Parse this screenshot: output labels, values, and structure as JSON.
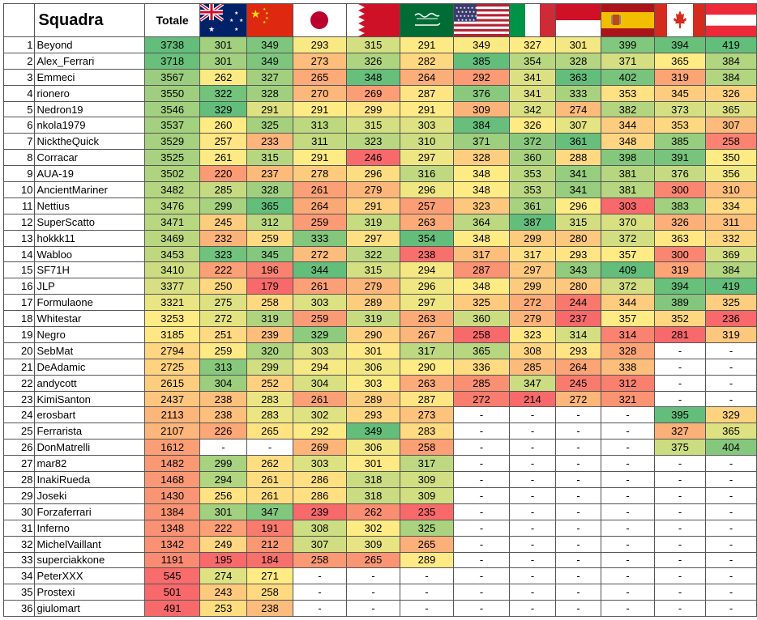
{
  "header": {
    "title": "Squadra",
    "total_label": "Totale"
  },
  "flags": [
    "australia-flag",
    "china-flag",
    "japan-flag",
    "bahrain-flag",
    "saudi-arabia-flag",
    "usa-flag",
    "italy-flag",
    "monaco-flag",
    "spain-flag",
    "canada-flag",
    "austria-flag"
  ],
  "rows": [
    {
      "rank": "1",
      "name": "Beyond",
      "total": "3738",
      "scores": [
        "301",
        "349",
        "293",
        "315",
        "291",
        "349",
        "327",
        "301",
        "399",
        "394",
        "419"
      ]
    },
    {
      "rank": "2",
      "name": "Alex_Ferrari",
      "total": "3718",
      "scores": [
        "301",
        "349",
        "273",
        "326",
        "282",
        "385",
        "354",
        "328",
        "371",
        "365",
        "384"
      ]
    },
    {
      "rank": "3",
      "name": "Emmeci",
      "total": "3567",
      "scores": [
        "262",
        "327",
        "265",
        "348",
        "264",
        "292",
        "341",
        "363",
        "402",
        "319",
        "384"
      ]
    },
    {
      "rank": "4",
      "name": "rionero",
      "total": "3550",
      "scores": [
        "322",
        "328",
        "270",
        "269",
        "287",
        "376",
        "341",
        "333",
        "353",
        "345",
        "326"
      ]
    },
    {
      "rank": "5",
      "name": "Nedron19",
      "total": "3546",
      "scores": [
        "329",
        "291",
        "291",
        "299",
        "291",
        "309",
        "342",
        "274",
        "382",
        "373",
        "365"
      ]
    },
    {
      "rank": "6",
      "name": "nkola1979",
      "total": "3537",
      "scores": [
        "260",
        "325",
        "313",
        "315",
        "303",
        "384",
        "326",
        "307",
        "344",
        "353",
        "307"
      ]
    },
    {
      "rank": "7",
      "name": "NicktheQuick",
      "total": "3529",
      "scores": [
        "257",
        "233",
        "311",
        "323",
        "310",
        "371",
        "372",
        "361",
        "348",
        "385",
        "258"
      ]
    },
    {
      "rank": "8",
      "name": "Corracar",
      "total": "3525",
      "scores": [
        "261",
        "315",
        "291",
        "246",
        "297",
        "328",
        "360",
        "288",
        "398",
        "391",
        "350"
      ]
    },
    {
      "rank": "9",
      "name": "AUA-19",
      "total": "3502",
      "scores": [
        "220",
        "237",
        "278",
        "296",
        "316",
        "348",
        "353",
        "341",
        "381",
        "376",
        "356"
      ]
    },
    {
      "rank": "10",
      "name": "AncientMariner",
      "total": "3482",
      "scores": [
        "285",
        "328",
        "261",
        "279",
        "296",
        "348",
        "353",
        "341",
        "381",
        "300",
        "310"
      ]
    },
    {
      "rank": "11",
      "name": "Nettius",
      "total": "3476",
      "scores": [
        "299",
        "365",
        "264",
        "291",
        "257",
        "323",
        "361",
        "296",
        "303",
        "383",
        "334"
      ]
    },
    {
      "rank": "12",
      "name": "SuperScatto",
      "total": "3471",
      "scores": [
        "245",
        "312",
        "259",
        "319",
        "263",
        "364",
        "387",
        "315",
        "370",
        "326",
        "311"
      ]
    },
    {
      "rank": "13",
      "name": "hokkk11",
      "total": "3469",
      "scores": [
        "232",
        "259",
        "333",
        "297",
        "354",
        "348",
        "299",
        "280",
        "372",
        "363",
        "332"
      ]
    },
    {
      "rank": "14",
      "name": "Wabloo",
      "total": "3453",
      "scores": [
        "323",
        "345",
        "272",
        "322",
        "238",
        "317",
        "317",
        "293",
        "357",
        "300",
        "369"
      ]
    },
    {
      "rank": "15",
      "name": "SF71H",
      "total": "3410",
      "scores": [
        "222",
        "196",
        "344",
        "315",
        "294",
        "287",
        "297",
        "343",
        "409",
        "319",
        "384"
      ]
    },
    {
      "rank": "16",
      "name": "JLP",
      "total": "3377",
      "scores": [
        "250",
        "179",
        "261",
        "279",
        "296",
        "348",
        "299",
        "280",
        "372",
        "394",
        "419"
      ]
    },
    {
      "rank": "17",
      "name": "Formulaone",
      "total": "3321",
      "scores": [
        "275",
        "258",
        "303",
        "289",
        "297",
        "325",
        "272",
        "244",
        "344",
        "389",
        "325"
      ]
    },
    {
      "rank": "18",
      "name": "Whitestar",
      "total": "3253",
      "scores": [
        "272",
        "319",
        "259",
        "319",
        "263",
        "360",
        "279",
        "237",
        "357",
        "352",
        "236"
      ]
    },
    {
      "rank": "19",
      "name": "Negro",
      "total": "3185",
      "scores": [
        "251",
        "239",
        "329",
        "290",
        "267",
        "258",
        "323",
        "314",
        "314",
        "281",
        "319"
      ]
    },
    {
      "rank": "20",
      "name": "SebMat",
      "total": "2794",
      "scores": [
        "259",
        "320",
        "303",
        "301",
        "317",
        "365",
        "308",
        "293",
        "328",
        "-",
        "-"
      ]
    },
    {
      "rank": "21",
      "name": "DeAdamic",
      "total": "2725",
      "scores": [
        "313",
        "299",
        "294",
        "306",
        "290",
        "336",
        "285",
        "264",
        "338",
        "-",
        "-"
      ]
    },
    {
      "rank": "22",
      "name": "andycott",
      "total": "2615",
      "scores": [
        "304",
        "252",
        "304",
        "303",
        "263",
        "285",
        "347",
        "245",
        "312",
        "-",
        "-"
      ]
    },
    {
      "rank": "23",
      "name": "KimiSanton",
      "total": "2437",
      "scores": [
        "238",
        "283",
        "261",
        "289",
        "287",
        "272",
        "214",
        "272",
        "321",
        "-",
        "-"
      ]
    },
    {
      "rank": "24",
      "name": "erosbart",
      "total": "2113",
      "scores": [
        "238",
        "283",
        "302",
        "293",
        "273",
        "-",
        "-",
        "-",
        "-",
        "395",
        "329"
      ]
    },
    {
      "rank": "25",
      "name": "Ferrarista",
      "total": "2107",
      "scores": [
        "226",
        "265",
        "292",
        "349",
        "283",
        "-",
        "-",
        "-",
        "-",
        "327",
        "365"
      ]
    },
    {
      "rank": "26",
      "name": "DonMatrelli",
      "total": "1612",
      "scores": [
        "-",
        "-",
        "269",
        "306",
        "258",
        "-",
        "-",
        "-",
        "-",
        "375",
        "404"
      ]
    },
    {
      "rank": "27",
      "name": "mar82",
      "total": "1482",
      "scores": [
        "299",
        "262",
        "303",
        "301",
        "317",
        "-",
        "-",
        "-",
        "-",
        "-",
        "-"
      ]
    },
    {
      "rank": "28",
      "name": "InakiRueda",
      "total": "1468",
      "scores": [
        "294",
        "261",
        "286",
        "318",
        "309",
        "-",
        "-",
        "-",
        "-",
        "-",
        "-"
      ]
    },
    {
      "rank": "29",
      "name": "Joseki",
      "total": "1430",
      "scores": [
        "256",
        "261",
        "286",
        "318",
        "309",
        "-",
        "-",
        "-",
        "-",
        "-",
        "-"
      ]
    },
    {
      "rank": "30",
      "name": "Forzaferrari",
      "total": "1384",
      "scores": [
        "301",
        "347",
        "239",
        "262",
        "235",
        "-",
        "-",
        "-",
        "-",
        "-",
        "-"
      ]
    },
    {
      "rank": "31",
      "name": "Inferno",
      "total": "1348",
      "scores": [
        "222",
        "191",
        "308",
        "302",
        "325",
        "-",
        "-",
        "-",
        "-",
        "-",
        "-"
      ]
    },
    {
      "rank": "32",
      "name": "MichelVaillant",
      "total": "1342",
      "scores": [
        "249",
        "212",
        "307",
        "309",
        "265",
        "-",
        "-",
        "-",
        "-",
        "-",
        "-"
      ]
    },
    {
      "rank": "33",
      "name": "superciakkone",
      "total": "1191",
      "scores": [
        "195",
        "184",
        "258",
        "265",
        "289",
        "-",
        "-",
        "-",
        "-",
        "-",
        "-"
      ]
    },
    {
      "rank": "34",
      "name": "PeterXXX",
      "total": "545",
      "scores": [
        "274",
        "271",
        "-",
        "-",
        "-",
        "-",
        "-",
        "-",
        "-",
        "-",
        "-"
      ]
    },
    {
      "rank": "35",
      "name": "Prostexi",
      "total": "501",
      "scores": [
        "243",
        "258",
        "-",
        "-",
        "-",
        "-",
        "-",
        "-",
        "-",
        "-",
        "-"
      ]
    },
    {
      "rank": "36",
      "name": "giulomart",
      "total": "491",
      "scores": [
        "253",
        "238",
        "-",
        "-",
        "-",
        "-",
        "-",
        "-",
        "-",
        "-",
        "-"
      ]
    }
  ]
}
